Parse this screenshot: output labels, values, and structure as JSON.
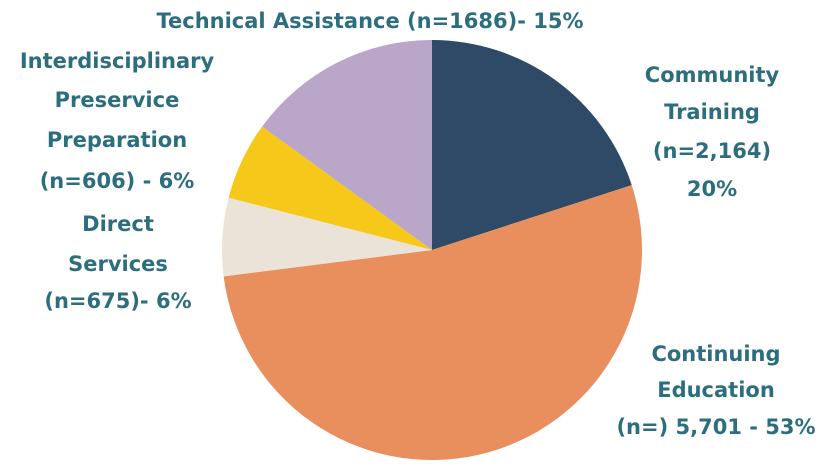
{
  "chart_data": {
    "type": "pie",
    "values": [
      20,
      53,
      6,
      6,
      15
    ],
    "value_labels": [
      [
        "Community",
        "Training",
        "(n=2,164)",
        "20%"
      ],
      [
        "Continuing",
        "Education",
        "(n=) 5,701 - 53%"
      ],
      [
        "Direct",
        "Services",
        "(n=675)- 6%"
      ],
      [
        "Interdisciplinary",
        "Preservice",
        "Preparation",
        "(n=606) - 6%"
      ],
      [
        "Technical Assistance (n=1686)- 15%"
      ]
    ],
    "colors": [
      "#2f4a66",
      "#e98f5e",
      "#ebe3d7",
      "#f6c819",
      "#b9a6c9"
    ]
  }
}
